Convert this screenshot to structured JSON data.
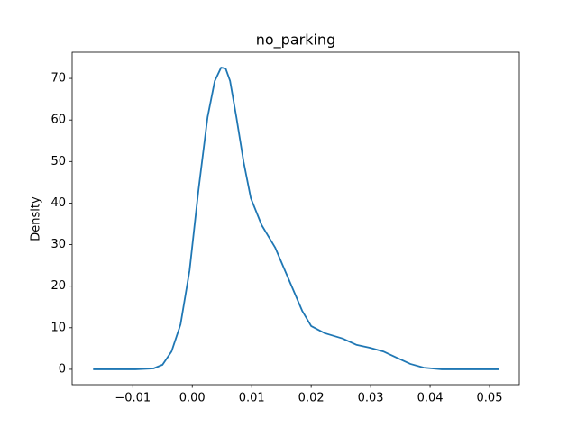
{
  "chart_data": {
    "type": "line",
    "title": "no_parking",
    "ylabel": "Density",
    "color": "#1f77b4",
    "x": [
      -0.01667,
      -0.00955,
      -0.00652,
      -0.005,
      -0.00348,
      -0.00197,
      -0.00045,
      0.00106,
      0.00258,
      0.00379,
      0.00485,
      0.00561,
      0.00636,
      0.00742,
      0.00864,
      0.00985,
      0.01167,
      0.01394,
      0.01621,
      0.01848,
      0.02,
      0.02227,
      0.0253,
      0.02758,
      0.02985,
      0.03212,
      0.03439,
      0.03667,
      0.03894,
      0.04197,
      0.05152
    ],
    "values": [
      0,
      0,
      0.2,
      1.1,
      4.3,
      10.8,
      23.8,
      43.3,
      60.7,
      69.4,
      72.6,
      72.4,
      69.4,
      60.7,
      49.9,
      41.2,
      34.7,
      29.3,
      21.7,
      14.1,
      10.4,
      8.7,
      7.4,
      5.9,
      5.2,
      4.3,
      2.8,
      1.3,
      0.4,
      0,
      0
    ],
    "xlim": [
      -0.0202,
      0.055
    ],
    "ylim": [
      -3.7,
      76.3
    ],
    "xticks": [
      {
        "value": -0.01,
        "label": "−0.01"
      },
      {
        "value": 0,
        "label": "0.00"
      },
      {
        "value": 0.01,
        "label": "0.01"
      },
      {
        "value": 0.02,
        "label": "0.02"
      },
      {
        "value": 0.03,
        "label": "0.03"
      },
      {
        "value": 0.04,
        "label": "0.04"
      },
      {
        "value": 0.05,
        "label": "0.05"
      }
    ],
    "yticks": [
      0,
      10,
      20,
      30,
      40,
      50,
      60,
      70
    ]
  }
}
